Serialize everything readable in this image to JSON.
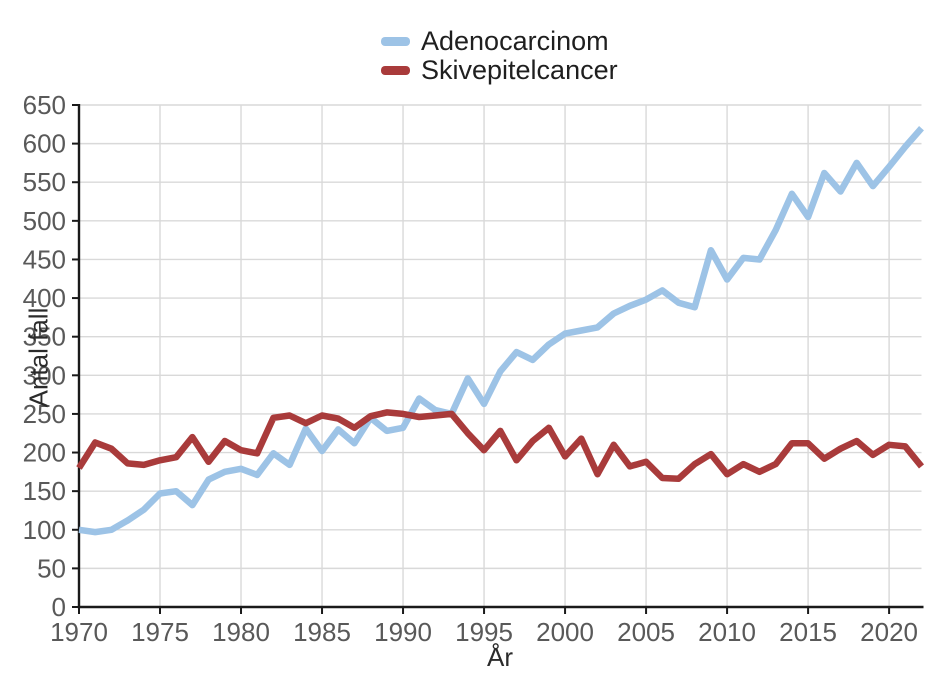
{
  "chart_data": {
    "type": "line",
    "title": "",
    "xlabel": "År",
    "ylabel": "Antal fall",
    "x": [
      1970,
      1971,
      1972,
      1973,
      1974,
      1975,
      1976,
      1977,
      1978,
      1979,
      1980,
      1981,
      1982,
      1983,
      1984,
      1985,
      1986,
      1987,
      1988,
      1989,
      1990,
      1991,
      1992,
      1993,
      1994,
      1995,
      1996,
      1997,
      1998,
      1999,
      2000,
      2001,
      2002,
      2003,
      2004,
      2005,
      2006,
      2007,
      2008,
      2009,
      2010,
      2011,
      2012,
      2013,
      2014,
      2015,
      2016,
      2017,
      2018,
      2019,
      2020,
      2021,
      2022
    ],
    "series": [
      {
        "name": "Adenocarcinom",
        "color": "#9DC3E6",
        "values": [
          100,
          97,
          100,
          112,
          126,
          147,
          150,
          132,
          165,
          175,
          179,
          171,
          199,
          184,
          231,
          202,
          230,
          212,
          245,
          228,
          232,
          270,
          255,
          250,
          296,
          263,
          305,
          330,
          320,
          340,
          354,
          358,
          362,
          380,
          390,
          398,
          410,
          394,
          388,
          462,
          424,
          452,
          450,
          488,
          535,
          505,
          562,
          538,
          575,
          545,
          570,
          596,
          620
        ]
      },
      {
        "name": "Skivepitelcancer",
        "color": "#A93B3B",
        "values": [
          180,
          213,
          205,
          186,
          184,
          190,
          194,
          220,
          188,
          215,
          203,
          199,
          245,
          248,
          238,
          248,
          244,
          232,
          247,
          252,
          250,
          246,
          248,
          250,
          225,
          203,
          228,
          190,
          215,
          232,
          195,
          218,
          172,
          210,
          182,
          188,
          167,
          166,
          185,
          198,
          172,
          185,
          175,
          185,
          212,
          212,
          192,
          205,
          215,
          197,
          210,
          208,
          182
        ]
      }
    ],
    "xticks": [
      1970,
      1975,
      1980,
      1985,
      1990,
      1995,
      2000,
      2005,
      2010,
      2015,
      2020
    ],
    "ylim": [
      0,
      650
    ],
    "ytick_step": 50,
    "grid": true,
    "legend_position": "top-center"
  },
  "style_colors": {
    "gridline": "#D9D9D9",
    "axis_line": "#1a1a1a",
    "tick_label": "#595959",
    "axis_title": "#2b2b2b",
    "legend_text": "#1f1f1f",
    "background": "#ffffff"
  }
}
